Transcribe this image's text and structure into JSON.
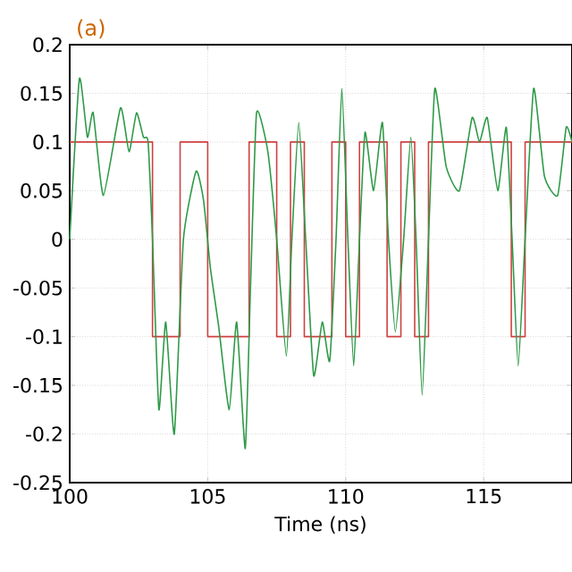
{
  "chart_data": {
    "type": "line",
    "xlabel": "Time (ns)",
    "annotations": [
      "(a)"
    ],
    "xlim": [
      100,
      118.2
    ],
    "xticks": [
      100,
      105,
      110,
      115
    ],
    "ylim": [
      -0.25,
      0.2
    ],
    "yticks": [
      -0.25,
      -0.2,
      -0.15,
      -0.1,
      -0.05,
      0,
      0.05,
      0.1,
      0.15,
      0.2
    ],
    "grid": true,
    "series": [
      {
        "type": "step",
        "color": "#d04040",
        "x": [
          100,
          103.0,
          104.0,
          105.0,
          106.5,
          107.5,
          108.0,
          108.5,
          109.5,
          110.0,
          110.5,
          111.5,
          112.0,
          112.5,
          113.0,
          116.0,
          116.5,
          118.2
        ],
        "values": [
          0.1,
          -0.1,
          0.1,
          -0.1,
          0.1,
          -0.1,
          0.1,
          -0.1,
          0.1,
          -0.1,
          0.1,
          -0.1,
          0.1,
          -0.1,
          0.1,
          -0.1,
          0.1,
          0.1
        ]
      },
      {
        "color": "#2e9a48",
        "x": [
          100,
          100.35,
          100.64,
          100.85,
          101.22,
          101.84,
          102.15,
          102.42,
          102.67,
          102.84,
          103.0,
          103.23,
          103.48,
          103.79,
          104.12,
          104.58,
          104.85,
          105.1,
          105.4,
          105.78,
          106.05,
          106.36,
          106.55,
          106.77,
          107.18,
          107.5,
          107.85,
          108.05,
          108.3,
          108.55,
          108.84,
          109.15,
          109.42,
          109.65,
          109.86,
          110.08,
          110.29,
          110.5,
          110.7,
          111.01,
          111.33,
          111.55,
          111.8,
          112.1,
          112.36,
          112.55,
          112.77,
          113.0,
          113.23,
          113.64,
          114.12,
          114.58,
          114.85,
          115.13,
          115.51,
          115.82,
          116.03,
          116.25,
          116.5,
          116.81,
          117.2,
          117.68,
          117.99,
          118.2
        ],
        "values": [
          0.0,
          0.165,
          0.105,
          0.13,
          0.045,
          0.135,
          0.09,
          0.13,
          0.105,
          0.1,
          0.0,
          -0.175,
          -0.085,
          -0.2,
          0.0,
          0.07,
          0.04,
          -0.03,
          -0.09,
          -0.175,
          -0.085,
          -0.215,
          -0.05,
          0.13,
          0.09,
          0.0,
          -0.12,
          0.0,
          0.12,
          0.0,
          -0.14,
          -0.085,
          -0.125,
          0.0,
          0.155,
          0.0,
          -0.13,
          0.0,
          0.11,
          0.05,
          0.12,
          0.0,
          -0.095,
          0.0,
          0.105,
          0.0,
          -0.16,
          0.0,
          0.155,
          0.075,
          0.05,
          0.125,
          0.1,
          0.125,
          0.05,
          0.115,
          0.0,
          -0.13,
          0.0,
          0.155,
          0.065,
          0.045,
          0.115,
          0.1
        ]
      }
    ]
  }
}
